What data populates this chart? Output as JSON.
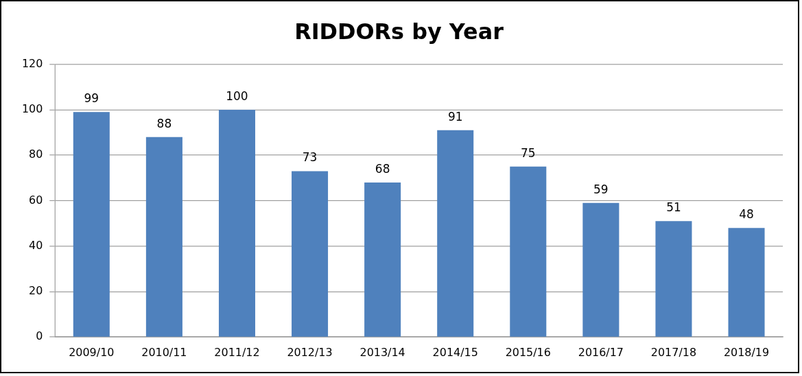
{
  "chart_data": {
    "type": "bar",
    "title": "RIDDORs by Year",
    "categories": [
      "2009/10",
      "2010/11",
      "2011/12",
      "2012/13",
      "2013/14",
      "2014/15",
      "2015/16",
      "2016/17",
      "2017/18",
      "2018/19"
    ],
    "values": [
      99,
      88,
      100,
      73,
      68,
      91,
      75,
      59,
      51,
      48
    ],
    "color": "#4f81bd",
    "ylim": [
      0,
      120
    ],
    "yticks": [
      0,
      20,
      40,
      60,
      80,
      100,
      120
    ],
    "grid": "y",
    "legend": false,
    "data_labels": true
  }
}
